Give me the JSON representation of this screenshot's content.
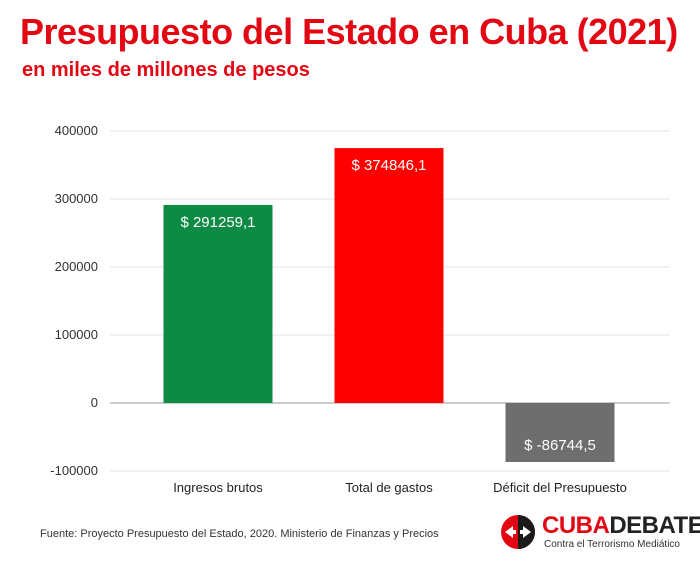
{
  "header": {
    "title": "Presupuesto del Estado en Cuba (2021)",
    "subtitle": "en miles de millones de pesos"
  },
  "colors": {
    "title": "#e30613",
    "ingresos": "#0d8a44",
    "gastos": "#ff0000",
    "deficit": "#6e6e6e",
    "grid": "#e6e6e6",
    "axis": "#333333"
  },
  "chart_data": {
    "type": "bar",
    "title": "Presupuesto del Estado en Cuba (2021)",
    "subtitle": "en miles de millones de pesos",
    "categories": [
      "Ingresos brutos",
      "Total de gastos",
      "Déficit del Presupuesto"
    ],
    "values": [
      291259.1,
      374846.1,
      -86744.5
    ],
    "data_labels": [
      "$ 291259,1",
      "$ 374846,1",
      "$ -86744,5"
    ],
    "y_ticks": [
      "400000",
      "300000",
      "200000",
      "100000",
      "0",
      "-100000"
    ],
    "ylim": [
      -100000,
      400000
    ],
    "xlabel": "",
    "ylabel": "",
    "grid": true,
    "legend": "none"
  },
  "footer": {
    "source": "Fuente: Proyecto Presupuesto del Estado, 2020. Ministerio de Finanzas y Precios",
    "logo_word_1": "CUBA",
    "logo_word_2": "DEBATE",
    "logo_tagline": "Contra el Terrorismo Mediático",
    "logo_icon": "cubadebate-arrows-icon"
  }
}
